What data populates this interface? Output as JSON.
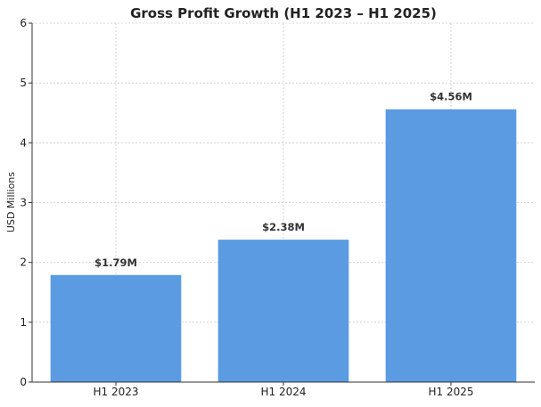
{
  "chart_data": {
    "type": "bar",
    "title": "Gross Profit Growth (H1 2023 – H1 2025)",
    "xlabel": "",
    "ylabel": "USD Millions",
    "categories": [
      "H1 2023",
      "H1 2024",
      "H1 2025"
    ],
    "values": [
      1.79,
      2.38,
      4.56
    ],
    "data_labels": [
      "$1.79M",
      "$2.38M",
      "$4.56M"
    ],
    "ylim": [
      0,
      6
    ],
    "yticks": [
      0,
      1,
      2,
      3,
      4,
      5,
      6
    ],
    "grid": true,
    "legend": "none",
    "bar_color": "#5b9be2"
  }
}
